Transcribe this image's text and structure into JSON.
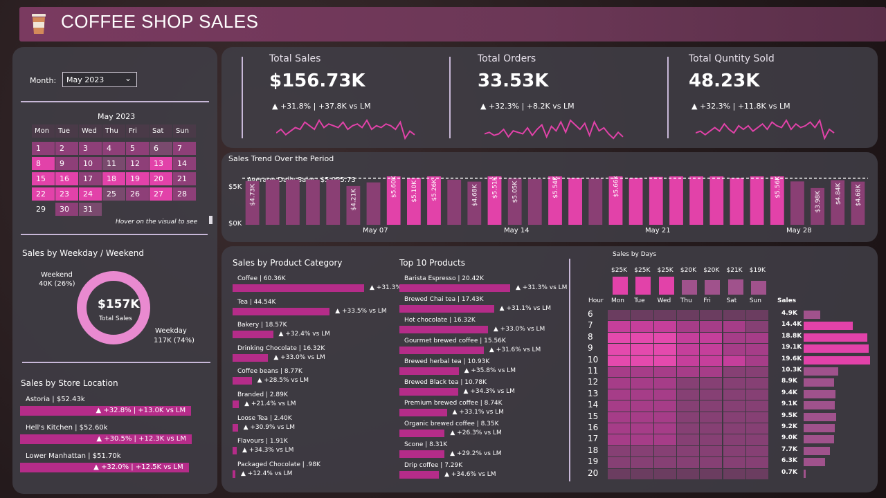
{
  "header": {
    "title": "COFFEE SHOP SALES"
  },
  "filter": {
    "label": "Month:",
    "value": "May 2023"
  },
  "calendar": {
    "title": "May 2023",
    "days": [
      "Mon",
      "Tue",
      "Wed",
      "Thu",
      "Fri",
      "Sat",
      "Sun"
    ],
    "hint": "Hover on the visual to see",
    "weeks": [
      [
        {
          "d": "1",
          "l": 2
        },
        {
          "d": "2",
          "l": 2
        },
        {
          "d": "3",
          "l": 2
        },
        {
          "d": "4",
          "l": 2
        },
        {
          "d": "5",
          "l": 2
        },
        {
          "d": "6",
          "l": 1
        },
        {
          "d": "7",
          "l": 2
        }
      ],
      [
        {
          "d": "8",
          "l": 3
        },
        {
          "d": "9",
          "l": 2
        },
        {
          "d": "10",
          "l": 2
        },
        {
          "d": "11",
          "l": 1
        },
        {
          "d": "12",
          "l": 2
        },
        {
          "d": "13",
          "l": 3
        },
        {
          "d": "14",
          "l": 2
        }
      ],
      [
        {
          "d": "15",
          "l": 3
        },
        {
          "d": "16",
          "l": 3
        },
        {
          "d": "17",
          "l": 2
        },
        {
          "d": "18",
          "l": 3
        },
        {
          "d": "19",
          "l": 3
        },
        {
          "d": "20",
          "l": 3
        },
        {
          "d": "21",
          "l": 2
        }
      ],
      [
        {
          "d": "22",
          "l": 3
        },
        {
          "d": "23",
          "l": 3
        },
        {
          "d": "24",
          "l": 3
        },
        {
          "d": "25",
          "l": 1
        },
        {
          "d": "26",
          "l": 2
        },
        {
          "d": "27",
          "l": 3
        },
        {
          "d": "28",
          "l": 2
        }
      ],
      [
        {
          "d": "29",
          "l": 0
        },
        {
          "d": "30",
          "l": 2
        },
        {
          "d": "31",
          "l": 1
        },
        null,
        null,
        null,
        null
      ]
    ]
  },
  "kpis": [
    {
      "title": "Total Sales",
      "value": "$156.73K",
      "change": "▲ +31.8% | +37.8K vs LM",
      "spark": [
        10,
        12,
        9,
        11,
        13,
        12,
        16,
        14,
        12,
        17,
        13,
        15,
        14,
        13,
        16,
        12,
        14,
        15,
        13,
        17,
        12,
        14,
        13,
        15,
        14,
        12,
        16,
        7,
        11,
        9
      ]
    },
    {
      "title": "Total Orders",
      "value": "33.53K",
      "change": "▲ +32.3% | +8.2K vs LM",
      "spark": [
        6,
        7,
        5,
        6,
        9,
        4,
        8,
        7,
        6,
        10,
        5,
        9,
        12,
        4,
        11,
        8,
        14,
        7,
        15,
        12,
        9,
        13,
        5,
        14,
        8,
        10,
        6,
        3,
        7,
        4
      ]
    },
    {
      "title": "Total Quntity Sold",
      "value": "48.23K",
      "change": "▲ +32.3% | +11.8K vs LM",
      "spark": [
        7,
        8,
        6,
        8,
        10,
        8,
        12,
        9,
        7,
        11,
        9,
        11,
        8,
        10,
        12,
        9,
        13,
        11,
        10,
        14,
        9,
        12,
        10,
        11,
        13,
        10,
        14,
        4,
        9,
        7
      ]
    }
  ],
  "trend": {
    "title": "Sales Trend Over the Period",
    "avg_label": "Average Daily Sales: $5,055.73",
    "y_ticks": [
      "$5K",
      "$0K"
    ],
    "x_ticks": [
      "May 07",
      "May 14",
      "May 21",
      "May 28"
    ],
    "bar_labels": [
      {
        "day": 1,
        "text": "$4.73K"
      },
      {
        "day": 6,
        "text": "$4.21K"
      },
      {
        "day": 8,
        "text": "$5.60K"
      },
      {
        "day": 9,
        "text": "$5.10K"
      },
      {
        "day": 10,
        "text": "$5.26K"
      },
      {
        "day": 12,
        "text": "$4.68K"
      },
      {
        "day": 13,
        "text": "$5.51K"
      },
      {
        "day": 14,
        "text": "$5.05K"
      },
      {
        "day": 16,
        "text": "$5.54K"
      },
      {
        "day": 19,
        "text": "$5.66K"
      },
      {
        "day": 27,
        "text": "$5.56K"
      },
      {
        "day": 29,
        "text": "$3.98K"
      },
      {
        "day": 30,
        "text": "$4.84K"
      },
      {
        "day": 31,
        "text": "$4.68K"
      }
    ]
  },
  "chart_data": {
    "type": "bar",
    "title": "Sales Trend Over the Period",
    "x": [
      1,
      2,
      3,
      4,
      5,
      6,
      7,
      8,
      9,
      10,
      11,
      12,
      13,
      14,
      15,
      16,
      17,
      18,
      19,
      20,
      21,
      22,
      23,
      24,
      25,
      26,
      27,
      28,
      29,
      30,
      31
    ],
    "values": [
      4.73,
      4.9,
      4.9,
      4.9,
      4.9,
      4.21,
      4.6,
      5.6,
      5.1,
      5.26,
      4.9,
      4.68,
      5.51,
      5.05,
      4.95,
      5.54,
      5.1,
      5.05,
      5.66,
      5.1,
      5.2,
      5.6,
      5.6,
      5.6,
      5.1,
      5.3,
      5.56,
      4.7,
      3.98,
      4.84,
      4.68
    ],
    "avg": 5.05573,
    "ylim": [
      0,
      6
    ],
    "unit": "$K",
    "above_avg_color": "#e242a9",
    "below_avg_color": "#8a3f74"
  },
  "weekday": {
    "title": "Sales by Weekday / Weekend",
    "center_value": "$157K",
    "center_label": "Total Sales",
    "weekend_label": "Weekend",
    "weekend_value": "40K (26%)",
    "weekday_label": "Weekday",
    "weekday_value": "117K (74%)",
    "weekend_share": 0.26
  },
  "store": {
    "title": "Sales by Store Location",
    "items": [
      {
        "name": "Astoria | $52.43k",
        "change": "▲ +32.8% | +13.0K vs LM",
        "value": 52.43
      },
      {
        "name": "Hell's Kitchen | $52.60k",
        "change": "▲ +30.5% | +12.3K vs LM",
        "value": 52.6
      },
      {
        "name": "Lower Manhattan | $51.70k",
        "change": "▲ +32.0% | +12.5K vs LM",
        "value": 51.7
      }
    ]
  },
  "category": {
    "title": "Sales by Product Category",
    "items": [
      {
        "name": "Coffee | 60.36K",
        "change": "▲ +31.3% vs LM",
        "value": 60.36
      },
      {
        "name": "Tea | 44.54K",
        "change": "▲ +33.5% vs LM",
        "value": 44.54
      },
      {
        "name": "Bakery | 18.57K",
        "change": "▲ +32.4% vs LM",
        "value": 18.57
      },
      {
        "name": "Drinking Chocolate | 16.32K",
        "change": "▲ +33.0% vs LM",
        "value": 16.32
      },
      {
        "name": "Coffee beans | 8.77K",
        "change": "▲ +28.5% vs LM",
        "value": 8.77
      },
      {
        "name": "Branded | 2.89K",
        "change": "▲ +21.4% vs LM",
        "value": 2.89
      },
      {
        "name": "Loose Tea | 2.40K",
        "change": "▲ +30.9% vs LM",
        "value": 2.4
      },
      {
        "name": "Flavours | 1.91K",
        "change": "▲ +34.3% vs LM",
        "value": 1.91
      },
      {
        "name": "Packaged Chocolate | .98K",
        "change": "▲ +12.4% vs LM",
        "value": 0.98
      }
    ]
  },
  "products": {
    "title": "Top 10 Products",
    "items": [
      {
        "name": "Barista Espresso | 20.42K",
        "change": "▲ +31.3% vs LM",
        "value": 20.42
      },
      {
        "name": "Brewed Chai tea | 17.43K",
        "change": "▲ +31.1% vs LM",
        "value": 17.43
      },
      {
        "name": "Hot chocolate | 16.32K",
        "change": "▲ +33.0% vs LM",
        "value": 16.32
      },
      {
        "name": "Gourmet brewed coffee | 15.56K",
        "change": "▲ +31.6% vs LM",
        "value": 15.56
      },
      {
        "name": "Brewed herbal tea | 10.93K",
        "change": "▲ +35.8% vs LM",
        "value": 10.93
      },
      {
        "name": "Brewed Black tea | 10.78K",
        "change": "▲ +34.3% vs LM",
        "value": 10.78
      },
      {
        "name": "Premium brewed coffee | 8.74K",
        "change": "▲ +33.1% vs LM",
        "value": 8.74
      },
      {
        "name": "Organic brewed coffee | 8.35K",
        "change": "▲ +26.3% vs LM",
        "value": 8.35
      },
      {
        "name": "Scone | 8.31K",
        "change": "▲ +29.2% vs LM",
        "value": 8.31
      },
      {
        "name": "Drip coffee | 7.29K",
        "change": "▲ +34.6% vs LM",
        "value": 7.29
      }
    ]
  },
  "heatmap": {
    "title": "Sales by Days",
    "hour_label": "Hour",
    "sales_label": "Sales",
    "days": [
      "Mon",
      "Tue",
      "Wed",
      "Thu",
      "Fri",
      "Sat",
      "Sun"
    ],
    "day_totals": [
      "$25K",
      "$25K",
      "$25K",
      "$20K",
      "$20K",
      "$21K",
      "$19K"
    ],
    "day_values": [
      25,
      25,
      25,
      20,
      20,
      21,
      19
    ],
    "hours": [
      "6",
      "7",
      "8",
      "9",
      "10",
      "11",
      "12",
      "13",
      "14",
      "15",
      "16",
      "17",
      "18",
      "19",
      "20"
    ],
    "hour_totals": [
      "4.9K",
      "14.4K",
      "18.8K",
      "19.1K",
      "19.6K",
      "10.3K",
      "8.9K",
      "9.4K",
      "9.1K",
      "9.5K",
      "9.2K",
      "9.0K",
      "7.7K",
      "6.3K",
      "0.7K"
    ],
    "hour_values": [
      4.9,
      14.4,
      18.8,
      19.1,
      19.6,
      10.3,
      8.9,
      9.4,
      9.1,
      9.5,
      9.2,
      9.0,
      7.7,
      6.3,
      0.7
    ],
    "cells": [
      [
        0,
        0,
        0,
        0,
        0,
        0,
        0
      ],
      [
        3,
        3,
        3,
        2,
        2,
        2,
        1
      ],
      [
        4,
        4,
        4,
        3,
        3,
        2,
        2
      ],
      [
        4,
        4,
        4,
        3,
        3,
        2,
        2
      ],
      [
        4,
        4,
        4,
        3,
        3,
        3,
        2
      ],
      [
        2,
        2,
        2,
        2,
        2,
        1,
        1
      ],
      [
        2,
        2,
        2,
        1,
        1,
        1,
        1
      ],
      [
        2,
        2,
        2,
        1,
        1,
        1,
        1
      ],
      [
        2,
        2,
        2,
        1,
        1,
        1,
        1
      ],
      [
        2,
        2,
        2,
        1,
        1,
        1,
        1
      ],
      [
        2,
        2,
        2,
        1,
        1,
        1,
        1
      ],
      [
        2,
        2,
        2,
        1,
        1,
        1,
        1
      ],
      [
        1,
        1,
        1,
        1,
        1,
        1,
        1
      ],
      [
        1,
        1,
        1,
        1,
        1,
        1,
        1
      ],
      [
        0,
        0,
        0,
        0,
        0,
        0,
        0
      ]
    ]
  }
}
